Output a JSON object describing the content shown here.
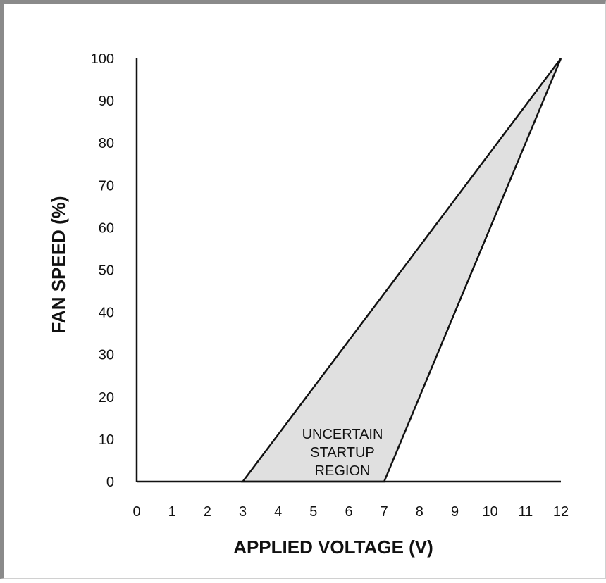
{
  "chart_data": {
    "type": "area",
    "xlabel": "APPLIED VOLTAGE (V)",
    "ylabel": "FAN SPEED (%)",
    "xlim": [
      0,
      12
    ],
    "ylim": [
      0,
      100
    ],
    "x_ticks": [
      0,
      1,
      2,
      3,
      4,
      5,
      6,
      7,
      8,
      9,
      10,
      11,
      12
    ],
    "y_ticks": [
      0,
      10,
      20,
      30,
      40,
      50,
      60,
      70,
      80,
      90,
      100
    ],
    "grid": false,
    "region": {
      "fill_color": "#e0e0e0",
      "upper_boundary": [
        {
          "x": 3,
          "y": 0
        },
        {
          "x": 12,
          "y": 100
        }
      ],
      "lower_boundary": [
        {
          "x": 7,
          "y": 0
        },
        {
          "x": 12,
          "y": 100
        }
      ],
      "label_lines": [
        "UNCERTAIN",
        "STARTUP",
        "REGION"
      ]
    }
  }
}
